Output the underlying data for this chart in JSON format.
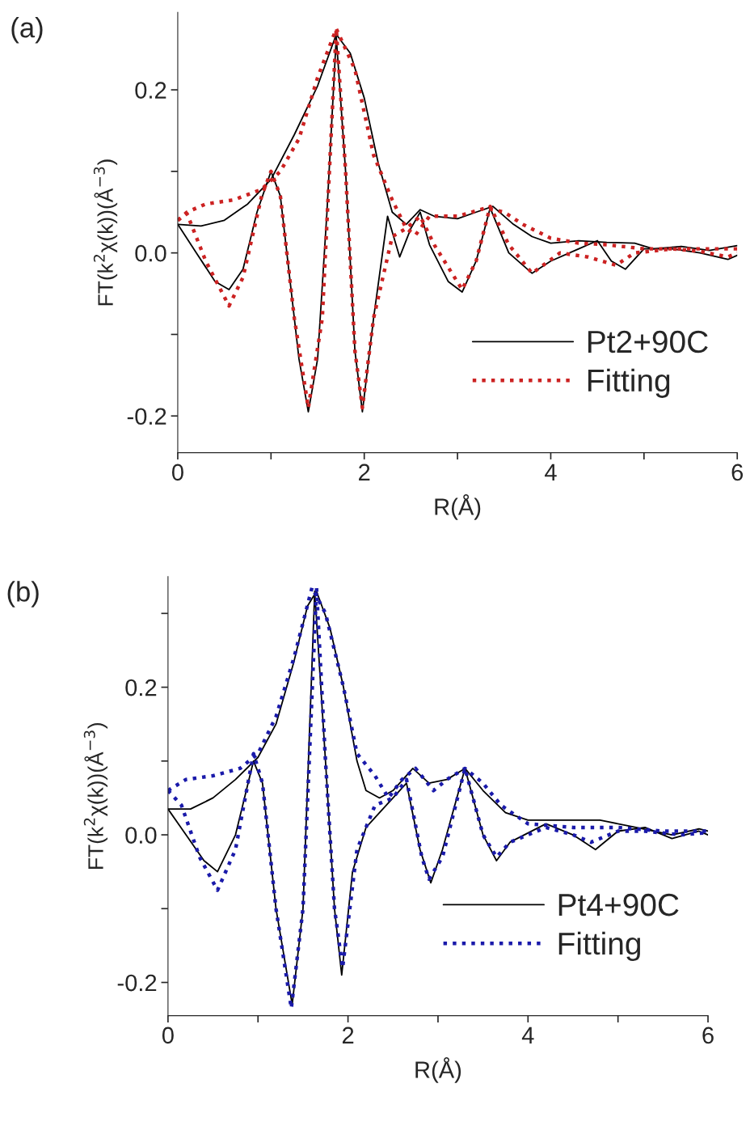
{
  "chart_data": [
    {
      "type": "line",
      "title": "(a)",
      "xlabel": "R(Å)",
      "ylabel": "FT(k$^{2}$χ(k))(Å$^{−3}$)",
      "xlim": [
        0,
        6
      ],
      "ylim": [
        -0.245,
        0.295
      ],
      "xticks": [
        0,
        {
          "value": 1,
          "label": null
        },
        2,
        {
          "value": 3,
          "label": null
        },
        4,
        {
          "value": 5,
          "label": null
        },
        6
      ],
      "yticks": [
        {
          "value": -0.2,
          "label": "-0.2"
        },
        {
          "value": -0.1,
          "label": null
        },
        {
          "value": 0,
          "label": "0.0"
        },
        {
          "value": 0.1,
          "label": null
        },
        {
          "value": 0.2,
          "label": "0.2"
        }
      ],
      "legend": "bottom right",
      "grid": false,
      "marker": "none",
      "series": [
        {
          "name": "Pt2+90C",
          "color": "#000000",
          "line_style": "solid",
          "x": [
            0,
            0.25,
            0.5,
            0.75,
            1.0,
            1.25,
            1.5,
            1.7,
            1.85,
            2.0,
            2.15,
            2.3,
            2.45,
            2.6,
            2.75,
            3.0,
            3.2,
            3.38,
            3.6,
            3.8,
            4.0,
            4.3,
            4.6,
            4.9,
            5.1,
            5.4,
            5.7,
            6.0
          ],
          "values": [
            0.035,
            0.033,
            0.04,
            0.06,
            0.09,
            0.145,
            0.205,
            0.268,
            0.245,
            0.19,
            0.11,
            0.05,
            0.035,
            0.053,
            0.045,
            0.042,
            0.05,
            0.057,
            0.035,
            0.02,
            0.012,
            0.015,
            0.013,
            0.012,
            0.005,
            0.008,
            0.003,
            0.009
          ]
        },
        {
          "color": "#000000",
          "line_style": "solid",
          "x": [
            0,
            0.2,
            0.4,
            0.55,
            0.7,
            0.85,
            1.0,
            1.1,
            1.2,
            1.3,
            1.4,
            1.5,
            1.6,
            1.7,
            1.8,
            1.9,
            1.98,
            2.1,
            2.25,
            2.38,
            2.5,
            2.6,
            2.7,
            2.9,
            3.05,
            3.2,
            3.35,
            3.55,
            3.8,
            4.0,
            4.3,
            4.5,
            4.65,
            4.8,
            5.0,
            5.3,
            5.6,
            5.9,
            6.0
          ],
          "values": [
            0.035,
            0.0,
            -0.035,
            -0.045,
            -0.02,
            0.05,
            0.1,
            0.07,
            -0.03,
            -0.13,
            -0.195,
            -0.13,
            0.05,
            0.265,
            0.1,
            -0.12,
            -0.195,
            -0.08,
            0.045,
            -0.005,
            0.03,
            0.05,
            0.01,
            -0.035,
            -0.048,
            -0.01,
            0.055,
            0.0,
            -0.025,
            -0.01,
            0.005,
            0.015,
            -0.01,
            -0.02,
            0.005,
            0.005,
            0.0,
            -0.008,
            -0.003
          ]
        },
        {
          "name": "Fitting",
          "color": "#cc2222",
          "line_style": "dotted",
          "x": [
            0,
            0.1,
            0.3,
            0.6,
            0.9,
            1.1,
            1.3,
            1.5,
            1.7,
            1.9,
            2.1,
            2.3,
            2.45,
            2.55,
            2.7,
            3.0,
            3.3,
            3.5,
            3.7,
            4.0,
            4.3,
            4.6,
            5.0,
            5.5,
            6.0
          ],
          "values": [
            0.04,
            0.05,
            0.06,
            0.065,
            0.078,
            0.1,
            0.14,
            0.215,
            0.275,
            0.225,
            0.12,
            0.065,
            0.03,
            0.022,
            0.045,
            0.045,
            0.055,
            0.05,
            0.035,
            0.018,
            0.012,
            0.01,
            0.005,
            0.005,
            0.005
          ]
        },
        {
          "color": "#cc2222",
          "line_style": "dotted",
          "x": [
            0,
            0.1,
            0.3,
            0.55,
            0.7,
            0.9,
            1.0,
            1.1,
            1.25,
            1.4,
            1.55,
            1.7,
            1.8,
            1.9,
            1.98,
            2.1,
            2.3,
            2.45,
            2.6,
            2.75,
            3.05,
            3.2,
            3.35,
            3.55,
            3.8,
            4.1,
            4.4,
            4.7,
            4.9,
            5.3,
            5.6,
            5.9,
            6.0
          ],
          "values": [
            0.04,
            0.048,
            -0.01,
            -0.065,
            -0.03,
            0.07,
            0.1,
            0.07,
            -0.08,
            -0.19,
            -0.08,
            0.275,
            0.1,
            -0.12,
            -0.19,
            -0.08,
            0.02,
            0.03,
            0.045,
            0.01,
            -0.045,
            -0.01,
            0.057,
            0.01,
            -0.025,
            0.0,
            -0.005,
            -0.015,
            0.0,
            0.005,
            0.002,
            -0.005,
            0.0
          ]
        }
      ]
    },
    {
      "type": "line",
      "title": "(b)",
      "xlabel": "R(Å)",
      "ylabel": "FT(k$^{2}$χ(k))(Å$^{−3}$)",
      "xlim": [
        0,
        6
      ],
      "ylim": [
        -0.245,
        0.35
      ],
      "xticks": [
        0,
        {
          "value": 1,
          "label": null
        },
        2,
        {
          "value": 3,
          "label": null
        },
        4,
        {
          "value": 5,
          "label": null
        },
        6
      ],
      "yticks": [
        {
          "value": -0.2,
          "label": "-0.2"
        },
        {
          "value": -0.1,
          "label": null
        },
        {
          "value": 0,
          "label": "0.0"
        },
        {
          "value": 0.1,
          "label": null
        },
        {
          "value": 0.2,
          "label": "0.2"
        },
        {
          "value": 0.3,
          "label": null
        }
      ],
      "legend": "bottom right",
      "grid": false,
      "marker": "none",
      "series": [
        {
          "name": "Pt4+90C",
          "color": "#000000",
          "line_style": "solid",
          "x": [
            0,
            0.25,
            0.5,
            0.75,
            1.0,
            1.2,
            1.4,
            1.55,
            1.65,
            1.8,
            1.95,
            2.1,
            2.2,
            2.35,
            2.5,
            2.72,
            2.9,
            3.1,
            3.3,
            3.5,
            3.75,
            4.0,
            4.4,
            4.8,
            5.2,
            5.6,
            5.9,
            6.0
          ],
          "values": [
            0.035,
            0.035,
            0.05,
            0.075,
            0.105,
            0.15,
            0.235,
            0.31,
            0.33,
            0.28,
            0.2,
            0.1,
            0.06,
            0.05,
            0.06,
            0.09,
            0.07,
            0.075,
            0.09,
            0.06,
            0.03,
            0.02,
            0.02,
            0.02,
            0.01,
            0.0,
            0.008,
            0.005
          ]
        },
        {
          "color": "#000000",
          "line_style": "solid",
          "x": [
            0,
            0.2,
            0.4,
            0.55,
            0.75,
            0.95,
            1.05,
            1.2,
            1.38,
            1.5,
            1.63,
            1.75,
            1.85,
            1.93,
            2.05,
            2.2,
            2.35,
            2.5,
            2.65,
            2.8,
            2.92,
            3.05,
            3.3,
            3.5,
            3.65,
            3.8,
            4.2,
            4.5,
            4.75,
            5.0,
            5.3,
            5.6,
            5.9,
            6.0
          ],
          "values": [
            0.035,
            0.0,
            -0.035,
            -0.05,
            0.0,
            0.1,
            0.07,
            -0.1,
            -0.23,
            -0.1,
            0.33,
            0.1,
            -0.1,
            -0.19,
            -0.05,
            0.01,
            0.03,
            0.05,
            0.07,
            -0.02,
            -0.065,
            -0.02,
            0.09,
            0.0,
            -0.035,
            -0.01,
            0.015,
            0.0,
            -0.02,
            0.005,
            0.01,
            -0.005,
            0.005,
            0.0
          ]
        },
        {
          "name": "Fitting",
          "color": "#1a1aaa",
          "line_style": "dotted",
          "x": [
            0,
            0.2,
            0.5,
            0.8,
            1.0,
            1.2,
            1.4,
            1.6,
            1.75,
            1.95,
            2.1,
            2.3,
            2.45,
            2.6,
            2.75,
            2.95,
            3.1,
            3.3,
            3.5,
            3.7,
            4.0,
            4.5,
            5.0,
            5.5,
            6.0
          ],
          "values": [
            0.06,
            0.075,
            0.08,
            0.09,
            0.11,
            0.16,
            0.24,
            0.335,
            0.3,
            0.2,
            0.11,
            0.08,
            0.05,
            0.075,
            0.09,
            0.06,
            0.075,
            0.09,
            0.07,
            0.04,
            0.015,
            0.01,
            0.01,
            0.005,
            0.005
          ]
        },
        {
          "color": "#1a1aaa",
          "line_style": "dotted",
          "x": [
            0,
            0.15,
            0.35,
            0.55,
            0.75,
            0.95,
            1.05,
            1.2,
            1.37,
            1.5,
            1.65,
            1.75,
            1.85,
            1.94,
            2.1,
            2.3,
            2.5,
            2.65,
            2.82,
            2.9,
            3.05,
            3.3,
            3.5,
            3.65,
            3.8,
            4.2,
            4.5,
            4.7,
            5.0,
            5.3,
            5.7,
            6.0
          ],
          "values": [
            0.06,
            0.04,
            -0.03,
            -0.075,
            -0.02,
            0.11,
            0.07,
            -0.1,
            -0.235,
            -0.1,
            0.335,
            0.1,
            -0.1,
            -0.18,
            -0.02,
            0.04,
            0.05,
            0.075,
            -0.03,
            -0.06,
            -0.03,
            0.09,
            0.0,
            -0.03,
            -0.01,
            0.01,
            0.0,
            -0.01,
            0.005,
            0.005,
            0.0,
            0.003
          ]
        }
      ]
    }
  ]
}
